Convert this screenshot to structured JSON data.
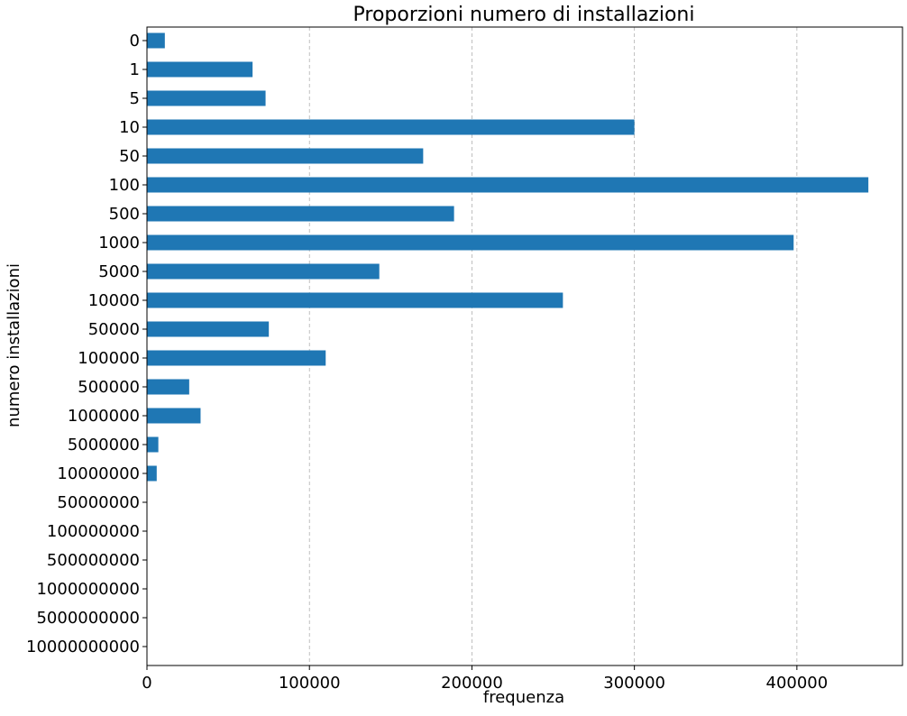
{
  "chart_data": {
    "type": "bar",
    "orientation": "horizontal",
    "title": "Proporzioni numero di installazioni",
    "xlabel": "frequenza",
    "ylabel": "numero installazioni",
    "categories": [
      "0",
      "1",
      "5",
      "10",
      "50",
      "100",
      "500",
      "1000",
      "5000",
      "10000",
      "50000",
      "100000",
      "500000",
      "1000000",
      "5000000",
      "10000000",
      "50000000",
      "100000000",
      "500000000",
      "1000000000",
      "5000000000",
      "10000000000"
    ],
    "values": [
      11000,
      65000,
      73000,
      300000,
      170000,
      444000,
      189000,
      398000,
      143000,
      256000,
      75000,
      110000,
      26000,
      33000,
      7000,
      6000,
      0,
      0,
      0,
      0,
      0,
      0
    ],
    "xlim": [
      0,
      465000
    ],
    "xticks": [
      0,
      100000,
      200000,
      300000,
      400000
    ],
    "xtick_labels": [
      "0",
      "100000",
      "200000",
      "300000",
      "400000"
    ],
    "grid": "x-dashed",
    "bar_color": "#1f77b4",
    "grid_color": "#b0b0b0"
  }
}
